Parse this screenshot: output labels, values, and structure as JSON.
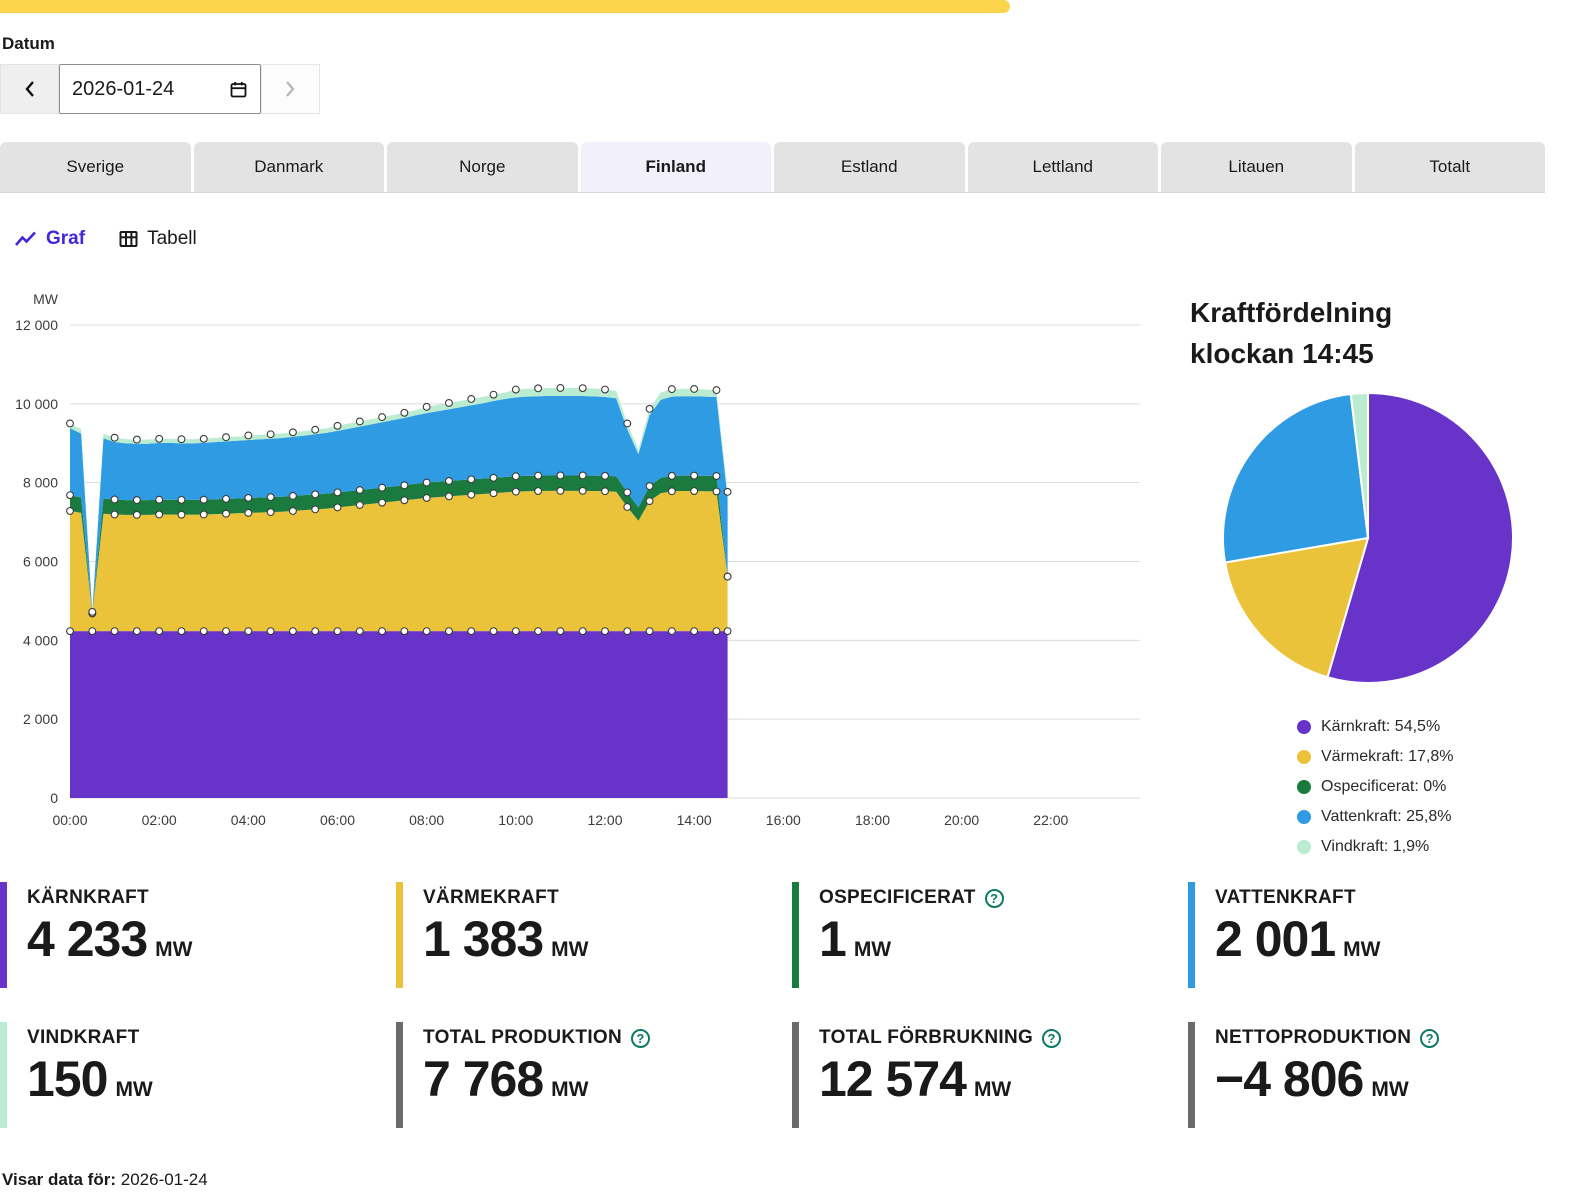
{
  "banner": {
    "color": "#fcd44e"
  },
  "date_picker": {
    "label": "Datum",
    "value": "2026-01-24"
  },
  "tabs": [
    {
      "label": "Sverige",
      "active": false
    },
    {
      "label": "Danmark",
      "active": false
    },
    {
      "label": "Norge",
      "active": false
    },
    {
      "label": "Finland",
      "active": true
    },
    {
      "label": "Estland",
      "active": false
    },
    {
      "label": "Lettland",
      "active": false
    },
    {
      "label": "Litauen",
      "active": false
    },
    {
      "label": "Totalt",
      "active": false
    }
  ],
  "view_toggle": {
    "graf_label": "Graf",
    "tabell_label": "Tabell",
    "active": "graf"
  },
  "chart_data": {
    "type": "area",
    "stacked": true,
    "title": "",
    "ylabel": "MW",
    "ylim": [
      0,
      12000
    ],
    "yticks": [
      0,
      2000,
      4000,
      6000,
      8000,
      10000,
      12000
    ],
    "ytick_labels": [
      "0",
      "2 000",
      "4 000",
      "6 000",
      "8 000",
      "10 000",
      "12 000"
    ],
    "xlim_hours": [
      0,
      24
    ],
    "xtick_hours": [
      0,
      2,
      4,
      6,
      8,
      10,
      12,
      14,
      16,
      18,
      20,
      22
    ],
    "xtick_labels": [
      "00:00",
      "02:00",
      "04:00",
      "06:00",
      "08:00",
      "10:00",
      "12:00",
      "14:00",
      "16:00",
      "18:00",
      "20:00",
      "22:00"
    ],
    "grid": true,
    "x_hours": [
      0,
      0.25,
      0.5,
      0.75,
      1,
      1.25,
      1.5,
      1.75,
      2,
      2.25,
      2.5,
      2.75,
      3,
      3.25,
      3.5,
      3.75,
      4,
      4.25,
      4.5,
      4.75,
      5,
      5.25,
      5.5,
      5.75,
      6,
      6.25,
      6.5,
      6.75,
      7,
      7.25,
      7.5,
      7.75,
      8,
      8.25,
      8.5,
      8.75,
      9,
      9.25,
      9.5,
      9.75,
      10,
      10.25,
      10.5,
      10.75,
      11,
      11.25,
      11.5,
      11.75,
      12,
      12.25,
      12.5,
      12.75,
      13,
      13.25,
      13.5,
      13.75,
      14,
      14.25,
      14.5,
      14.75
    ],
    "series": [
      {
        "name": "Kärnkraft",
        "color": "#6733c9",
        "values": [
          4233,
          4233,
          4233,
          4233,
          4233,
          4233,
          4233,
          4233,
          4233,
          4233,
          4233,
          4233,
          4233,
          4233,
          4233,
          4233,
          4233,
          4233,
          4233,
          4233,
          4233,
          4233,
          4233,
          4233,
          4233,
          4233,
          4233,
          4233,
          4233,
          4233,
          4233,
          4233,
          4233,
          4233,
          4233,
          4233,
          4233,
          4233,
          4233,
          4233,
          4233,
          4233,
          4233,
          4233,
          4233,
          4233,
          4233,
          4233,
          4233,
          4233,
          4233,
          4233,
          4233,
          4233,
          4233,
          4233,
          4233,
          4233,
          4233,
          4233
        ]
      },
      {
        "name": "Värmekraft",
        "color": "#ebc33b",
        "values": [
          3050,
          3000,
          450,
          2980,
          2960,
          2950,
          2950,
          2950,
          2960,
          2960,
          2955,
          2955,
          2960,
          2970,
          2980,
          2990,
          3000,
          3010,
          3020,
          3030,
          3050,
          3070,
          3090,
          3110,
          3140,
          3170,
          3200,
          3230,
          3260,
          3290,
          3320,
          3350,
          3380,
          3400,
          3420,
          3440,
          3460,
          3480,
          3500,
          3520,
          3540,
          3550,
          3555,
          3560,
          3560,
          3560,
          3560,
          3555,
          3550,
          3540,
          3150,
          2800,
          3300,
          3500,
          3550,
          3555,
          3555,
          3550,
          3545,
          1383
        ]
      },
      {
        "name": "Ospecificerat",
        "color": "#1b7b3e",
        "values": [
          400,
          390,
          5,
          385,
          380,
          375,
          375,
          375,
          375,
          375,
          375,
          375,
          375,
          375,
          375,
          375,
          380,
          380,
          380,
          380,
          380,
          380,
          380,
          380,
          380,
          380,
          380,
          380,
          380,
          380,
          380,
          390,
          390,
          390,
          390,
          390,
          390,
          390,
          390,
          390,
          390,
          390,
          390,
          390,
          390,
          390,
          390,
          390,
          390,
          390,
          370,
          340,
          380,
          390,
          390,
          390,
          390,
          390,
          390,
          1
        ]
      },
      {
        "name": "Vattenkraft",
        "color": "#2e9be2",
        "values": [
          1700,
          1620,
          30,
          1530,
          1460,
          1440,
          1430,
          1430,
          1440,
          1440,
          1435,
          1435,
          1440,
          1450,
          1460,
          1465,
          1470,
          1475,
          1480,
          1490,
          1500,
          1510,
          1525,
          1540,
          1560,
          1585,
          1610,
          1635,
          1660,
          1685,
          1710,
          1735,
          1760,
          1790,
          1820,
          1850,
          1880,
          1910,
          1950,
          1980,
          2000,
          2010,
          2015,
          2020,
          2020,
          2020,
          2015,
          2010,
          2000,
          1980,
          1600,
          1350,
          1800,
          1980,
          2010,
          2015,
          2015,
          2010,
          2005,
          2001
        ]
      },
      {
        "name": "Vindkraft",
        "color": "#b9ecd1",
        "values": [
          120,
          115,
          5,
          110,
          108,
          105,
          105,
          105,
          105,
          105,
          105,
          105,
          105,
          105,
          105,
          105,
          115,
          115,
          115,
          115,
          115,
          115,
          115,
          115,
          130,
          130,
          130,
          130,
          130,
          130,
          130,
          130,
          160,
          160,
          160,
          160,
          160,
          160,
          160,
          160,
          200,
          200,
          200,
          200,
          200,
          200,
          200,
          200,
          190,
          185,
          150,
          120,
          160,
          185,
          190,
          190,
          185,
          180,
          175,
          150
        ]
      }
    ]
  },
  "pie": {
    "title_line1": "Kraftfördelning",
    "title_line2": "klockan 14:45",
    "slices": [
      {
        "name": "Kärnkraft",
        "label": "Kärnkraft: 54,5%",
        "value": 54.5,
        "color": "#6733c9"
      },
      {
        "name": "Värmekraft",
        "label": "Värmekraft: 17,8%",
        "value": 17.8,
        "color": "#ebc33b"
      },
      {
        "name": "Ospecificerat",
        "label": "Ospecificerat: 0%",
        "value": 0,
        "color": "#1b7b3e"
      },
      {
        "name": "Vattenkraft",
        "label": "Vattenkraft: 25,8%",
        "value": 25.8,
        "color": "#2e9be2"
      },
      {
        "name": "Vindkraft",
        "label": "Vindkraft: 1,9%",
        "value": 1.9,
        "color": "#b9ecd1"
      }
    ]
  },
  "cards": [
    {
      "title": "KÄRNKRAFT",
      "value": "4 233",
      "unit": "MW",
      "color": "#6733c9",
      "help": false
    },
    {
      "title": "VÄRMEKRAFT",
      "value": "1 383",
      "unit": "MW",
      "color": "#ebc33b",
      "help": false
    },
    {
      "title": "OSPECIFICERAT",
      "value": "1",
      "unit": "MW",
      "color": "#1b7b3e",
      "help": true
    },
    {
      "title": "VATTENKRAFT",
      "value": "2 001",
      "unit": "MW",
      "color": "#2e9be2",
      "help": false
    },
    {
      "title": "VINDKRAFT",
      "value": "150",
      "unit": "MW",
      "color": "#b9ecd1",
      "help": false
    },
    {
      "title": "TOTAL PRODUKTION",
      "value": "7 768",
      "unit": "MW",
      "color": "#6b6b6b",
      "help": true
    },
    {
      "title": "TOTAL FÖRBRUKNING",
      "value": "12 574",
      "unit": "MW",
      "color": "#6b6b6b",
      "help": true
    },
    {
      "title": "NETTOPRODUKTION",
      "value": "−4 806",
      "unit": "MW",
      "color": "#6b6b6b",
      "help": true
    }
  ],
  "footer": {
    "label": "Visar data för:",
    "value": "2026-01-24"
  }
}
